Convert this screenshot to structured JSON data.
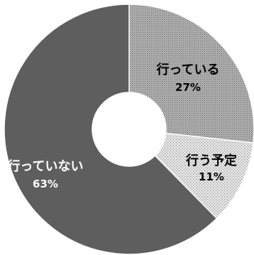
{
  "chart_data": {
    "type": "pie",
    "donut": true,
    "title": "",
    "start": "top, clockwise",
    "slices": [
      {
        "label": "行っている",
        "value": 27,
        "value_label": "27%",
        "pattern": "dense-dots",
        "color": "#a8a8a8"
      },
      {
        "label": "行う予定",
        "value": 11,
        "value_label": "11%",
        "pattern": "light-dots",
        "color": "#dcdcdc"
      },
      {
        "label": "行っていない",
        "value": 63,
        "value_label": "63%",
        "pattern": "solid",
        "color": "#5e5e5e"
      }
    ],
    "label_colors": [
      "#000000",
      "#000000",
      "#ffffff"
    ],
    "edge_color": "#ffffff"
  }
}
